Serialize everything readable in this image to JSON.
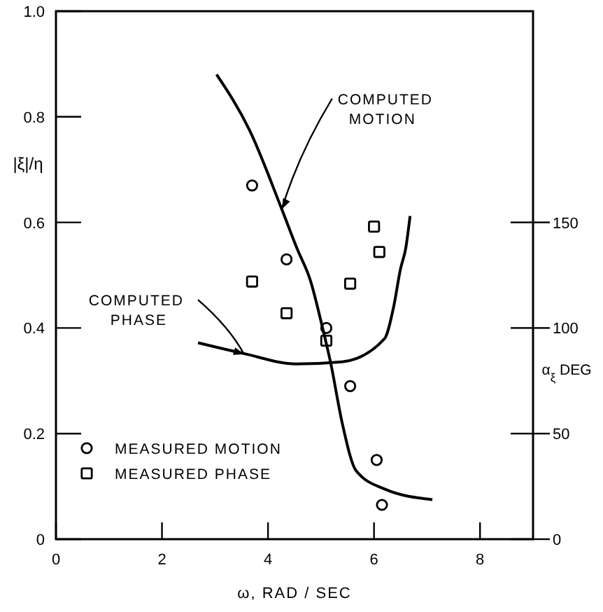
{
  "chart_data": {
    "type": "scatter",
    "xlabel": "ω, RAD / SEC",
    "ylabel": "|ξ|/η",
    "y2label": "α$_{ξ}$ DEG",
    "xlim": [
      0,
      9
    ],
    "xticks": [
      0,
      2,
      4,
      6,
      8
    ],
    "ylim": [
      0,
      1
    ],
    "yticks": [
      0,
      0.2,
      0.4,
      0.6,
      0.8,
      {
        "value": 1,
        "label": "1.0"
      }
    ],
    "y2lim": [
      0,
      250
    ],
    "y2ticks": [
      0,
      50,
      100,
      150
    ],
    "grid": false,
    "legend": "bottom left",
    "series": [
      {
        "name": "MEASURED MOTION",
        "marker": "circle",
        "color": "#000000",
        "x": [
          3.7,
          4.35,
          5.1,
          5.55,
          6.05,
          6.15
        ],
        "values": [
          0.67,
          0.53,
          0.4,
          0.29,
          0.15,
          0.065
        ]
      },
      {
        "name": "MEASURED PHASE",
        "marker": "square",
        "axis": "y2",
        "color": "#000000",
        "x": [
          3.7,
          4.35,
          5.1,
          5.55,
          6.0,
          6.1
        ],
        "values": [
          122,
          107,
          94,
          121,
          148,
          136
        ]
      },
      {
        "type": "line",
        "marker": "none",
        "color": "#000000",
        "x": [
          3.03,
          3.65,
          4.26,
          4.55,
          4.8,
          5.03,
          5.18,
          5.4,
          5.66,
          6.2,
          7.1
        ],
        "values": [
          0.88,
          0.775,
          0.625,
          0.55,
          0.49,
          0.4,
          0.335,
          0.22,
          0.13,
          0.095,
          0.075
        ]
      },
      {
        "type": "line",
        "marker": "none",
        "axis": "y2",
        "color": "#000000",
        "x": [
          2.68,
          3.53,
          4.53,
          5.4,
          6.2,
          6.37,
          6.5,
          6.6,
          6.68
        ],
        "values": [
          93,
          88,
          83,
          84,
          95,
          110,
          128,
          138,
          153
        ]
      }
    ],
    "annotations": [
      {
        "text": "COMPUTED MOTION",
        "x": 4.26,
        "y": 0.625
      },
      {
        "text": "COMPUTED PHASE",
        "x": 3.55,
        "y": 0.35
      }
    ]
  }
}
